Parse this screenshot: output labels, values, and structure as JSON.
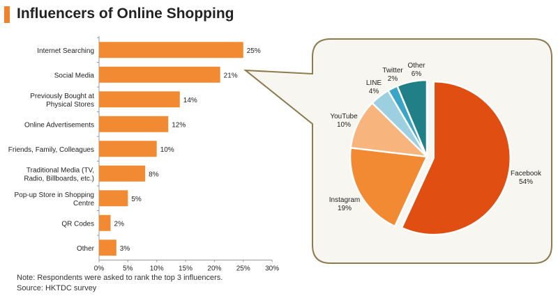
{
  "title": "Influencers of Online Shopping",
  "notes": {
    "note": "Note: Respondents were asked to rank the top 3 influencers.",
    "source": "Source: HKTDC survey"
  },
  "colors": {
    "accent": "#f0822e",
    "bar": "#f28a33",
    "callout_border": "#8c7a4e",
    "callout_fill": "#f7f6f1"
  },
  "chart_data": [
    {
      "type": "bar",
      "orientation": "horizontal",
      "title": "",
      "categories": [
        [
          "Internet Searching"
        ],
        [
          "Social Media"
        ],
        [
          "Previously Bought at",
          "Physical Stores"
        ],
        [
          "Online Advertisements"
        ],
        [
          "Friends, Family, Colleagues"
        ],
        [
          "Traditional Media (TV,",
          "Radio, Billboards, etc.)"
        ],
        [
          "Pop-up Store in Shopping",
          "Centre"
        ],
        [
          "QR Codes"
        ],
        [
          "Other"
        ]
      ],
      "values": [
        25,
        21,
        14,
        12,
        10,
        8,
        5,
        2,
        3
      ],
      "value_suffix": "%",
      "xlim": [
        0,
        30
      ],
      "xticks": [
        "0%",
        "5%",
        "10%",
        "15%",
        "20%",
        "25%",
        "30%"
      ],
      "xlabel": "",
      "ylabel": "",
      "grid": false
    },
    {
      "type": "pie",
      "title": "",
      "slices": [
        {
          "label": "Facebook",
          "value": 54,
          "display": "54%",
          "color": "#e04e12"
        },
        {
          "label": "Instagram",
          "value": 19,
          "display": "19%",
          "color": "#f28a33"
        },
        {
          "label": "YouTube",
          "value": 10,
          "display": "10%",
          "color": "#f7b47c"
        },
        {
          "label": "LINE",
          "value": 4,
          "display": "4%",
          "color": "#9ccfe0"
        },
        {
          "label": "Twitter",
          "value": 2,
          "display": "2%",
          "color": "#3ba5c8"
        },
        {
          "label": "Other",
          "value": 6,
          "display": "6%",
          "color": "#217f87"
        }
      ],
      "exploded": "Facebook"
    }
  ]
}
